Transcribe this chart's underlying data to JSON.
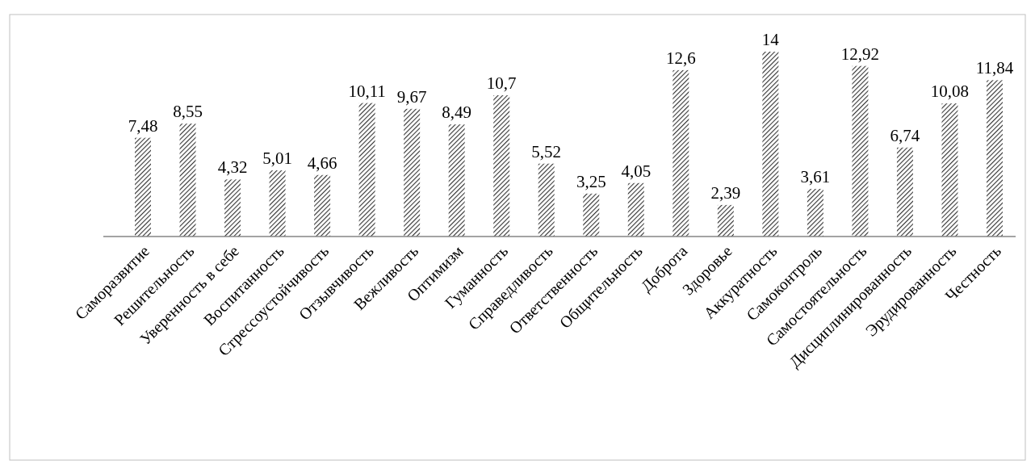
{
  "chart_data": {
    "type": "bar",
    "categories": [
      "Саморазвитие",
      "Решительность",
      "Уверенность в себе",
      "Воспитанность",
      "Стрессоустойчивость",
      "Отзывчивость",
      "Вежливость",
      "Оптимизм",
      "Гуманность",
      "Справедливость",
      "Ответственность",
      "Общительность",
      "Доброта",
      "Здоровье",
      "Аккуратность",
      "Самоконтроль",
      "Самостоятельность",
      "Дисциплинированность",
      "Эрудированность",
      "Честность"
    ],
    "values": [
      7.48,
      8.55,
      4.32,
      5.01,
      4.66,
      10.11,
      9.67,
      8.49,
      10.7,
      5.52,
      3.25,
      4.05,
      12.6,
      2.39,
      14,
      3.61,
      12.92,
      6.74,
      10.08,
      11.84
    ],
    "value_labels": [
      "7,48",
      "8,55",
      "4,32",
      "5,01",
      "4,66",
      "10,11",
      "9,67",
      "8,49",
      "10,7",
      "5,52",
      "3,25",
      "4,05",
      "12,6",
      "2,39",
      "14",
      "3,61",
      "12,92",
      "6,74",
      "10,08",
      "11,84"
    ],
    "color": "#333333"
  }
}
